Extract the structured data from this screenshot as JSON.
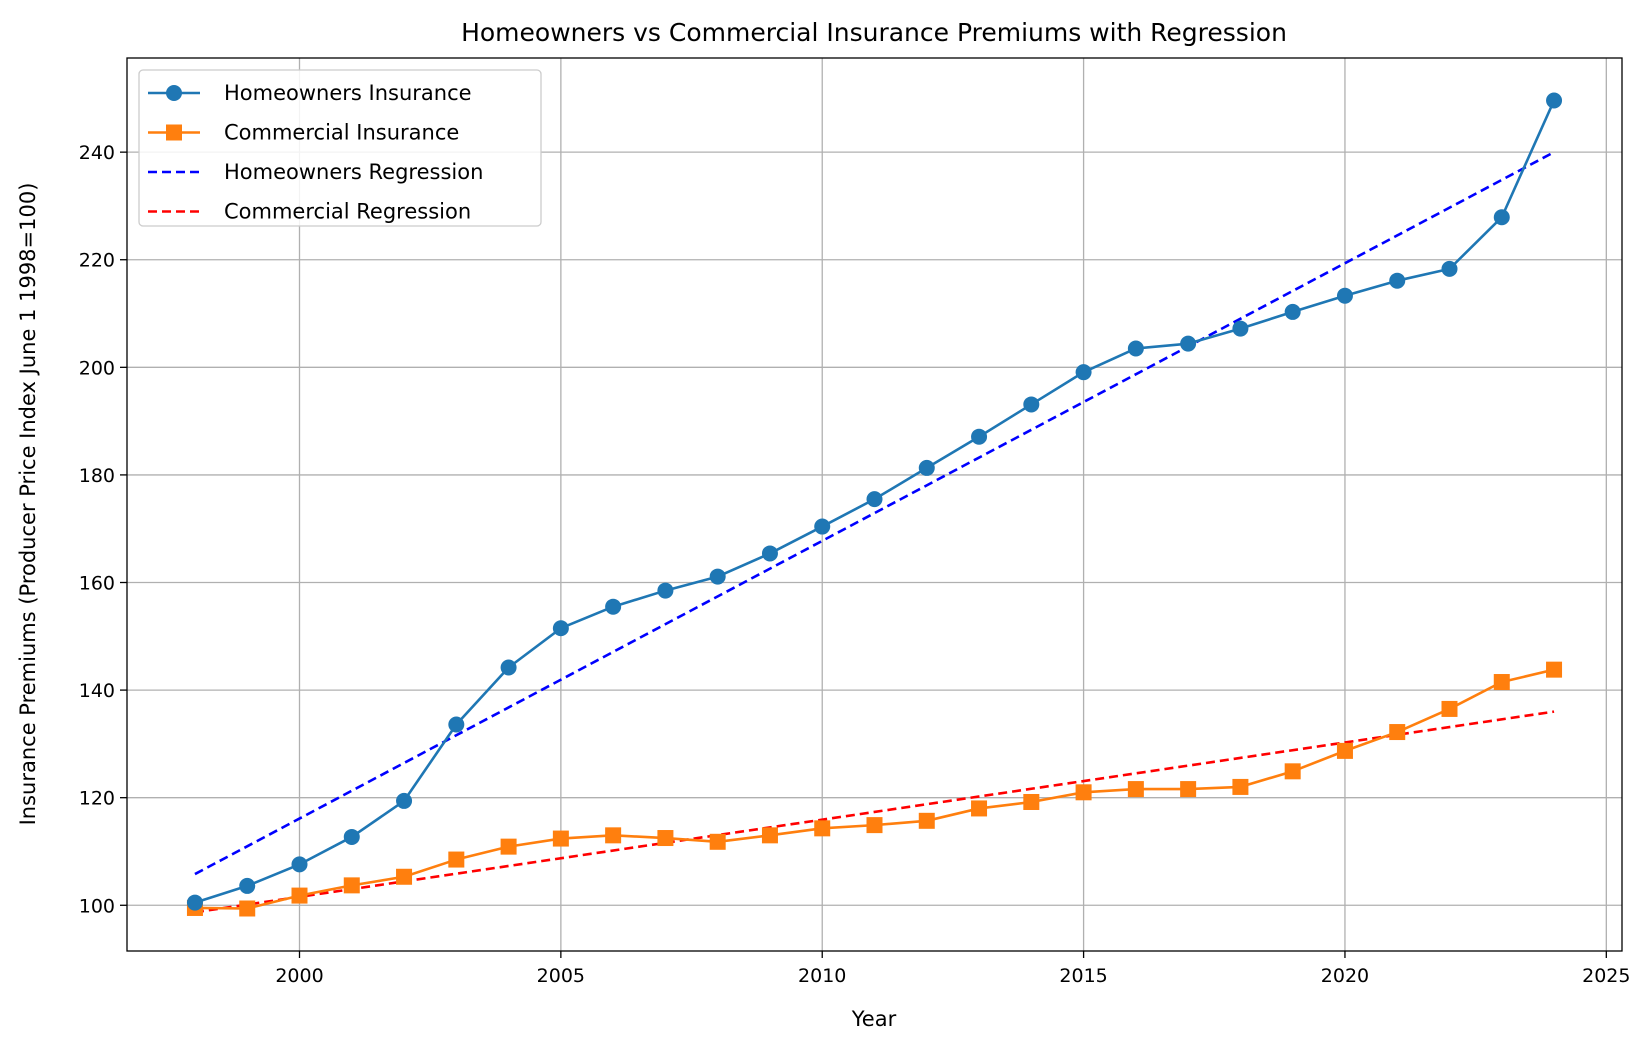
{
  "chart_data": {
    "type": "line",
    "title": "Homeowners vs Commercial Insurance Premiums with Regression",
    "xlabel": "Year",
    "ylabel": "Insurance Premiums (Producer Price Index June 1 1998=100)",
    "xlim": [
      1996.7,
      2025.3
    ],
    "ylim": [
      91.5,
      257.5
    ],
    "xticks": [
      2000,
      2005,
      2010,
      2015,
      2020,
      2025
    ],
    "yticks": [
      100,
      120,
      140,
      160,
      180,
      200,
      220,
      240
    ],
    "grid": true,
    "legend_position": "top-left",
    "x": [
      1998,
      1999,
      2000,
      2001,
      2002,
      2003,
      2004,
      2005,
      2006,
      2007,
      2008,
      2009,
      2010,
      2011,
      2012,
      2013,
      2014,
      2015,
      2016,
      2017,
      2018,
      2019,
      2020,
      2021,
      2022,
      2023,
      2024
    ],
    "series": [
      {
        "name": "Homeowners Insurance",
        "color": "#1f77b4",
        "marker": "circle",
        "style": "solid",
        "values": [
          100.5,
          103.6,
          107.6,
          112.7,
          119.4,
          133.6,
          144.2,
          151.5,
          155.5,
          158.5,
          161.1,
          165.4,
          170.4,
          175.5,
          181.3,
          187.1,
          193.1,
          199.1,
          203.5,
          204.4,
          207.2,
          210.3,
          213.3,
          216.1,
          218.3,
          227.9,
          249.6
        ]
      },
      {
        "name": "Commercial Insurance",
        "color": "#ff7f0e",
        "marker": "square",
        "style": "solid",
        "values": [
          99.5,
          99.4,
          101.8,
          103.7,
          105.3,
          108.5,
          110.9,
          112.4,
          113.0,
          112.5,
          111.8,
          113.0,
          114.3,
          114.9,
          115.7,
          118.0,
          119.2,
          121.0,
          121.6,
          121.6,
          122.0,
          124.9,
          128.7,
          132.2,
          136.5,
          141.5,
          143.8
        ]
      },
      {
        "name": "Homeowners Regression",
        "color": "#0000ff",
        "marker": "none",
        "style": "dashed",
        "values": [
          105.8,
          240.0
        ],
        "x": [
          1998,
          2024
        ]
      },
      {
        "name": "Commercial Regression",
        "color": "#ff0000",
        "marker": "none",
        "style": "dashed",
        "values": [
          98.7,
          136.0
        ],
        "x": [
          1998,
          2024
        ]
      }
    ]
  }
}
